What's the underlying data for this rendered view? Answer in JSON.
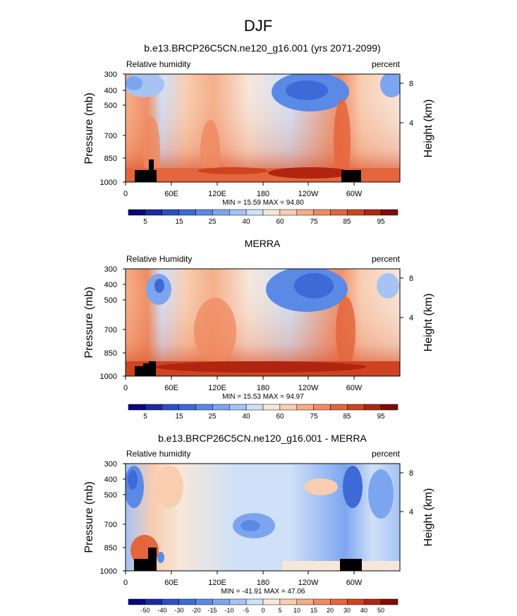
{
  "figure": {
    "title": "DJF"
  },
  "chart_data": [
    {
      "type": "heatmap",
      "title": "b.e13.BRCP26C5CN.ne120_g16.001 (yrs 2071-2099)",
      "left_label": "Relative humidity",
      "right_label": "percent",
      "ylabel": "Pressure (mb)",
      "ylabel_right": "Height (km)",
      "x_ticks": [
        "0",
        "60E",
        "120E",
        "180",
        "120W",
        "60W"
      ],
      "y_ticks": [
        "300",
        "400",
        "500",
        "700",
        "850",
        "1000"
      ],
      "y2_ticks": [
        "8",
        "4"
      ],
      "min_max_text": "MIN =  15.59   MAX =  94.80",
      "colorbar_labels": [
        "5",
        "15",
        "25",
        "40",
        "60",
        "75",
        "85",
        "95"
      ]
    },
    {
      "type": "heatmap",
      "title": "MERRA",
      "left_label": "Relative Humidity",
      "right_label": "percent",
      "ylabel": "Pressure (mb)",
      "ylabel_right": "Height (km)",
      "x_ticks": [
        "0",
        "60E",
        "120E",
        "180",
        "120W",
        "60W"
      ],
      "y_ticks": [
        "300",
        "400",
        "500",
        "700",
        "850",
        "1000"
      ],
      "y2_ticks": [
        "8",
        "4"
      ],
      "min_max_text": "MIN =  15.53   MAX =  94.97",
      "colorbar_labels": [
        "5",
        "15",
        "25",
        "40",
        "60",
        "75",
        "85",
        "95"
      ]
    },
    {
      "type": "heatmap",
      "title": "b.e13.BRCP26C5CN.ne120_g16.001 - MERRA",
      "left_label": "Relative humidity",
      "right_label": "percent",
      "ylabel": "Pressure (mb)",
      "ylabel_right": "Height (km)",
      "x_ticks": [
        "0",
        "60E",
        "120E",
        "180",
        "120W",
        "60W"
      ],
      "y_ticks": [
        "300",
        "400",
        "500",
        "700",
        "850",
        "1000"
      ],
      "y2_ticks": [
        "8",
        "4"
      ],
      "min_max_text": "MIN = -41.91   MAX =  47.06",
      "colorbar_labels": [
        "-50",
        "-40",
        "-30",
        "-20",
        "-15",
        "-10",
        "-5",
        "0",
        "5",
        "10",
        "15",
        "20",
        "30",
        "40",
        "50"
      ]
    }
  ],
  "colors": {
    "colorbar": [
      "#08087a",
      "#1a2a9e",
      "#2c4fc4",
      "#3d6ad6",
      "#5b89e6",
      "#7da5ef",
      "#a6c3f4",
      "#cfe0f8",
      "#f7e7da",
      "#f8cdb0",
      "#f5ac86",
      "#ef8a60",
      "#e4663d",
      "#cf4320",
      "#b02510",
      "#7e0d08"
    ]
  }
}
